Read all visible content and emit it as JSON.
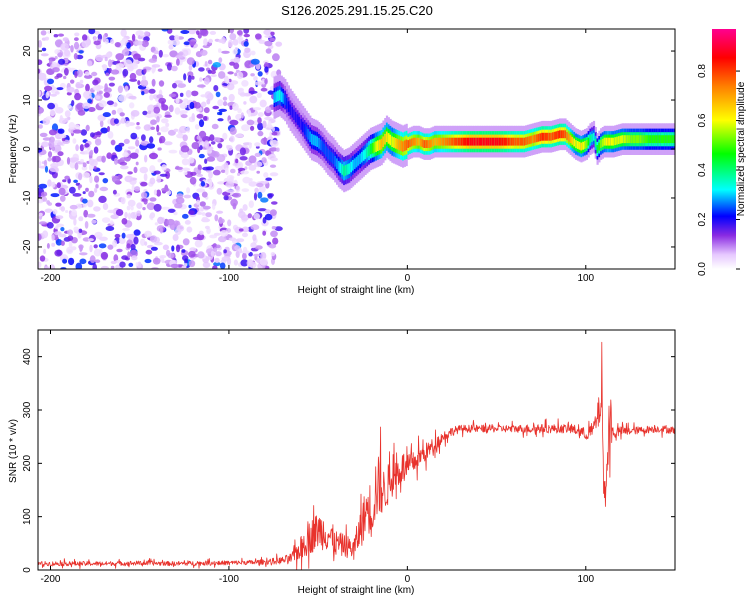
{
  "chart_data": [
    {
      "type": "heatmap",
      "title": "S126.2025.291.15.25.C20",
      "xlabel": "Height of straight line (km)",
      "ylabel": "Frequency (Hz)",
      "xlim": [
        -207,
        150
      ],
      "ylim": [
        -24.5,
        24.5
      ],
      "xticks": [
        "-200",
        "-100",
        "0",
        "100"
      ],
      "xtick_values": [
        -200,
        -100,
        0,
        100
      ],
      "yticks": [
        "-20",
        "-10",
        "0",
        "10",
        "20"
      ],
      "ytick_values": [
        -20,
        -10,
        0,
        10,
        20
      ],
      "colorbar": {
        "label": "Normalized spectral amplitude",
        "ticks": [
          "0.0",
          "0.2",
          "0.4",
          "0.6",
          "0.8"
        ],
        "tick_values": [
          0.0,
          0.2,
          0.4,
          0.6,
          0.8
        ],
        "range": [
          0,
          0.97
        ]
      },
      "noise_region_x": [
        -207,
        -75
      ],
      "noise_amplitude": 0.12,
      "ridge": {
        "x": [
          -75,
          -72,
          -69,
          -66,
          -63,
          -60,
          -57,
          -54,
          -51,
          -48,
          -45,
          -42,
          -39,
          -36,
          -33,
          -30,
          -27,
          -24,
          -21,
          -18,
          -15,
          -12,
          -9,
          -6,
          -3,
          0,
          3,
          6,
          9,
          12,
          15,
          20,
          25,
          30,
          35,
          40,
          45,
          50,
          55,
          60,
          65,
          70,
          75,
          80,
          85,
          88,
          91,
          94,
          97,
          100,
          102,
          104,
          106,
          108,
          110,
          112,
          115,
          120,
          125,
          130,
          135,
          140,
          145,
          150
        ],
        "freq": [
          10.5,
          11,
          10,
          8,
          6.5,
          5,
          3.5,
          2,
          1.5,
          0.5,
          -1,
          -2,
          -3.5,
          -4.5,
          -4,
          -3,
          -2,
          -1,
          0,
          0.5,
          1,
          2.5,
          1.5,
          1,
          0.5,
          1,
          1.5,
          1.5,
          1,
          1,
          1.5,
          1.5,
          1.5,
          1.5,
          1.5,
          1.5,
          1.5,
          1.5,
          1.5,
          1.5,
          1.5,
          2,
          2.5,
          2.5,
          3,
          3,
          2,
          1,
          0.5,
          1,
          2,
          2.5,
          0,
          1,
          1.5,
          1.5,
          1.5,
          2,
          2,
          2,
          2,
          2,
          2,
          2
        ],
        "amplitude": [
          0.3,
          0.35,
          0.25,
          0.2,
          0.2,
          0.2,
          0.25,
          0.3,
          0.3,
          0.25,
          0.25,
          0.25,
          0.3,
          0.4,
          0.35,
          0.3,
          0.3,
          0.35,
          0.45,
          0.6,
          0.7,
          0.65,
          0.6,
          0.7,
          0.75,
          0.8,
          0.75,
          0.7,
          0.8,
          0.75,
          0.7,
          0.75,
          0.8,
          0.85,
          0.9,
          0.9,
          0.9,
          0.9,
          0.85,
          0.8,
          0.8,
          0.75,
          0.85,
          0.8,
          0.85,
          0.8,
          0.7,
          0.6,
          0.65,
          0.55,
          0.4,
          0.35,
          0.45,
          0.55,
          0.6,
          0.65,
          0.6,
          0.6,
          0.55,
          0.55,
          0.5,
          0.5,
          0.5,
          0.5
        ]
      }
    },
    {
      "type": "line",
      "xlabel": "Height of straight line (km)",
      "ylabel": "SNR (10 * v/v)",
      "xlim": [
        -207,
        150
      ],
      "ylim": [
        0,
        450
      ],
      "xticks": [
        "-200",
        "-100",
        "0",
        "100"
      ],
      "xtick_values": [
        -200,
        -100,
        0,
        100
      ],
      "yticks": [
        "0",
        "100",
        "200",
        "300",
        "400"
      ],
      "ytick_values": [
        0,
        100,
        200,
        300,
        400
      ],
      "color": "#e8322c",
      "series": [
        {
          "name": "SNR",
          "x": [
            -207,
            -190,
            -170,
            -150,
            -130,
            -110,
            -90,
            -80,
            -70,
            -65,
            -60,
            -55,
            -50,
            -45,
            -40,
            -35,
            -30,
            -25,
            -22,
            -20,
            -18,
            -15,
            -13,
            -10,
            -8,
            -5,
            -2,
            0,
            3,
            6,
            10,
            15,
            20,
            25,
            30,
            40,
            50,
            60,
            70,
            80,
            90,
            95,
            100,
            103,
            105,
            107,
            109,
            110,
            111,
            112,
            113,
            115,
            120,
            130,
            140,
            150
          ],
          "values": [
            12,
            12,
            12,
            13,
            12,
            13,
            14,
            15,
            18,
            22,
            40,
            60,
            75,
            70,
            50,
            45,
            40,
            90,
            120,
            110,
            150,
            160,
            145,
            165,
            175,
            185,
            195,
            190,
            200,
            210,
            220,
            235,
            250,
            260,
            265,
            265,
            265,
            265,
            265,
            265,
            265,
            262,
            255,
            260,
            268,
            290,
            330,
            160,
            140,
            200,
            270,
            258,
            260,
            262,
            265,
            262
          ],
          "noise_amplitude": [
            6,
            6,
            6,
            6,
            6,
            6,
            6,
            7,
            10,
            14,
            30,
            45,
            50,
            50,
            35,
            30,
            30,
            60,
            70,
            80,
            90,
            80,
            60,
            55,
            50,
            45,
            40,
            35,
            30,
            28,
            25,
            20,
            15,
            12,
            10,
            10,
            10,
            10,
            12,
            12,
            12,
            14,
            16,
            20,
            25,
            40,
            70,
            40,
            30,
            60,
            80,
            20,
            12,
            10,
            10,
            10
          ]
        }
      ]
    }
  ]
}
